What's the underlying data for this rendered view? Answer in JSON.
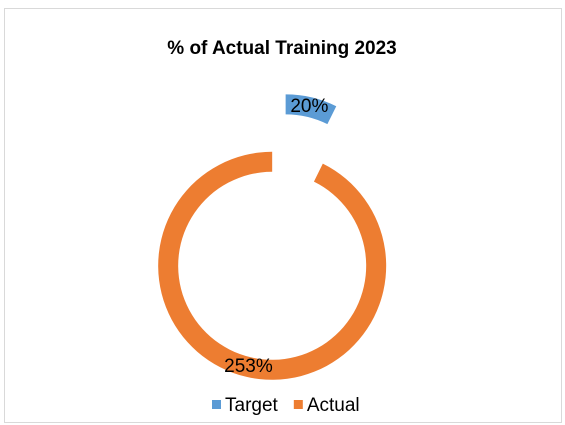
{
  "chart_data": {
    "type": "doughnut",
    "title": "% of Actual Training 2023",
    "categories": [
      "Target",
      "Actual"
    ],
    "values": [
      20,
      253
    ],
    "value_labels": [
      "20%",
      "253%"
    ],
    "colors": [
      "#5b9bd5",
      "#ed7d31"
    ],
    "legend": "bottom"
  }
}
